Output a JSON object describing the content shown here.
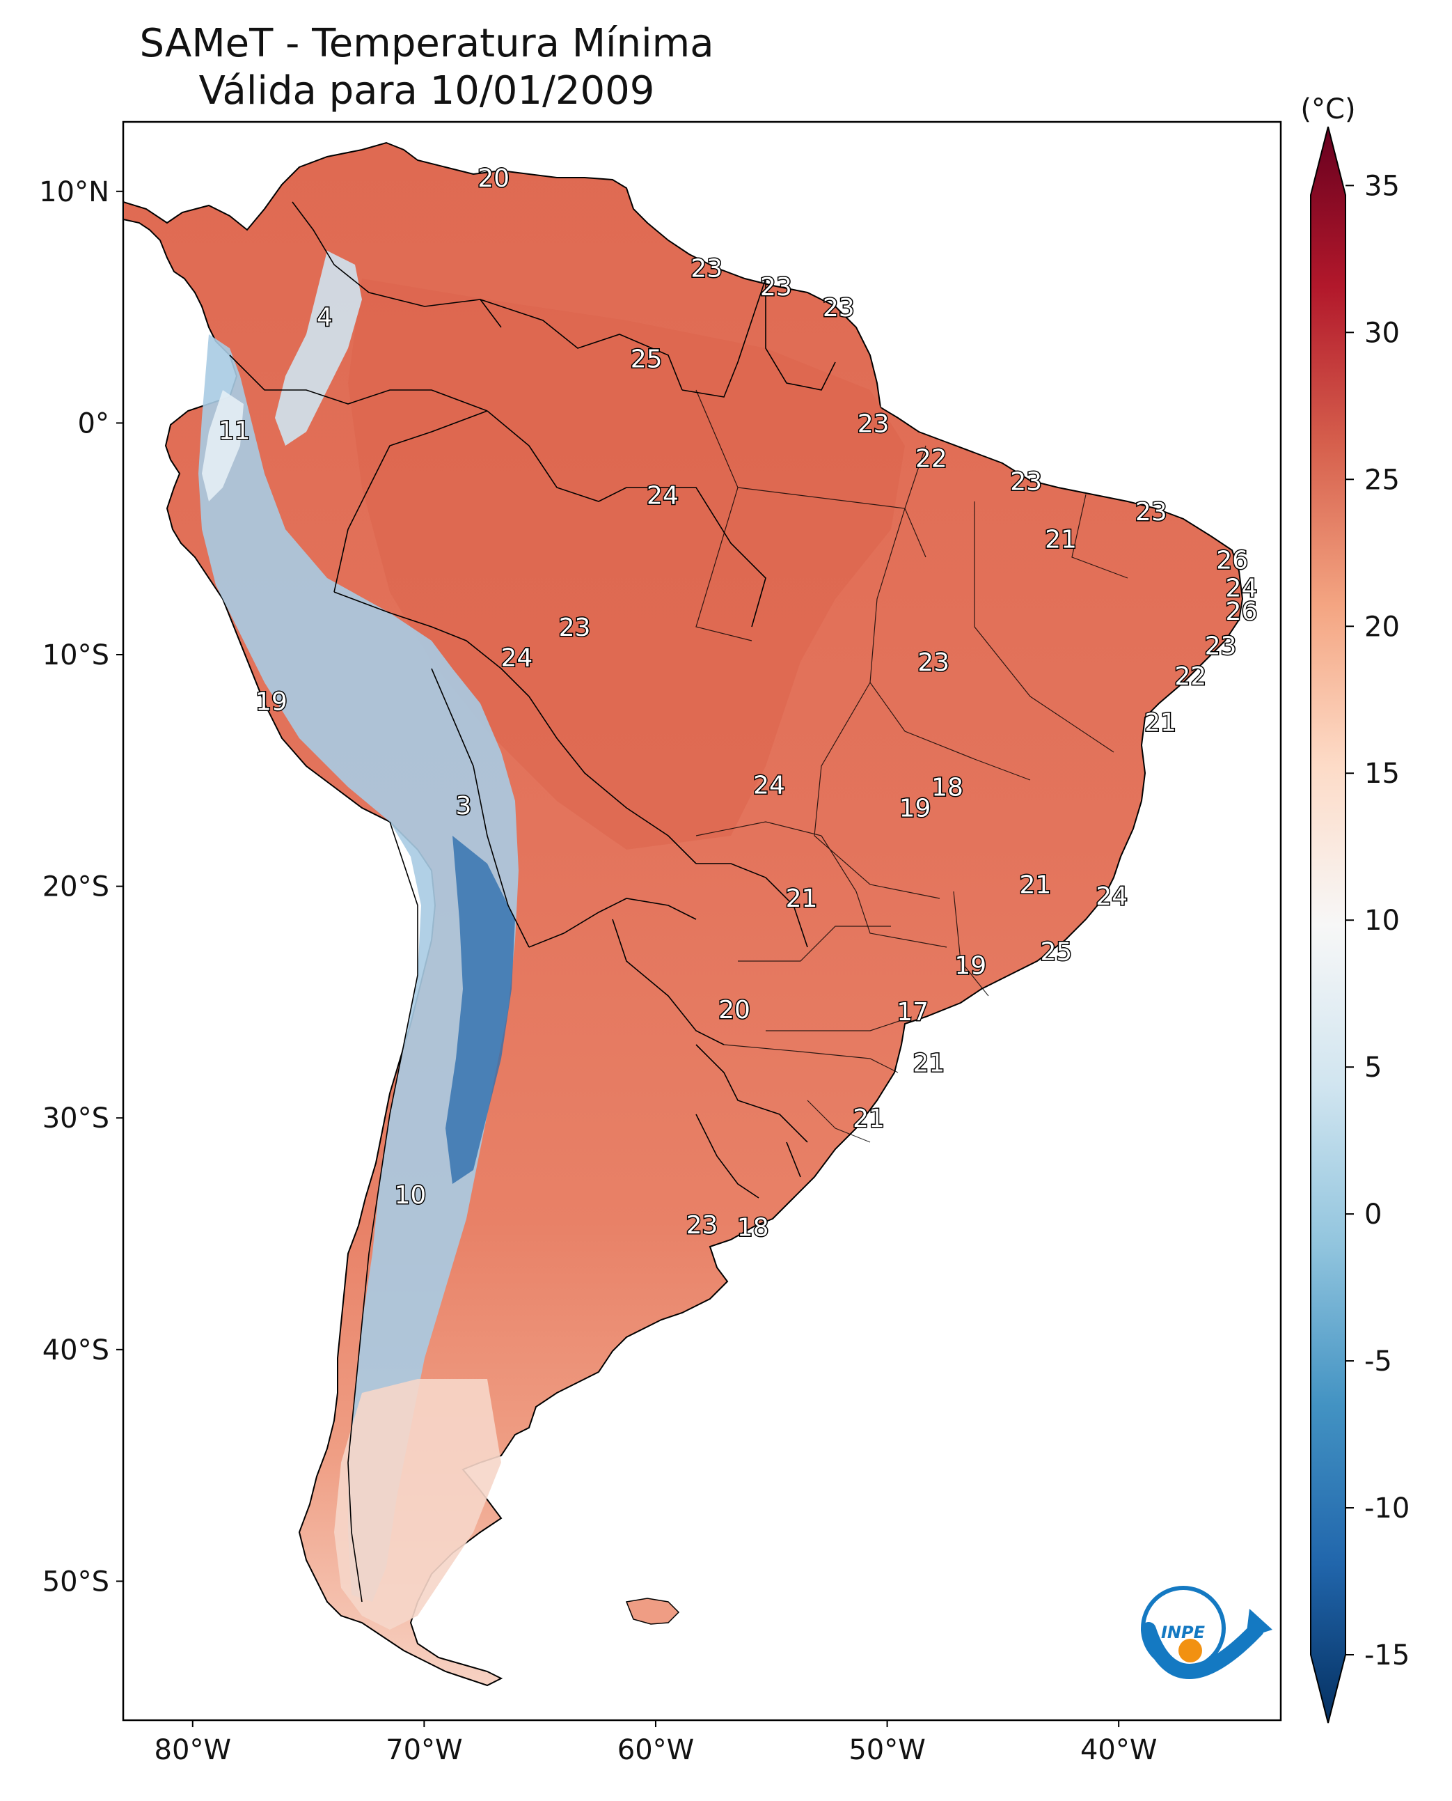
{
  "title": {
    "line1": "SAMeT - Temperatura Mínima",
    "line2": "Válida para 10/01/2009"
  },
  "axes": {
    "lat_labels": [
      "10°N",
      "0°",
      "10°S",
      "20°S",
      "30°S",
      "40°S",
      "50°S"
    ],
    "lat_values": [
      10,
      0,
      -10,
      -20,
      -30,
      -40,
      -50
    ],
    "lon_labels": [
      "80°W",
      "70°W",
      "60°W",
      "50°W",
      "40°W"
    ],
    "lon_values": [
      -80,
      -70,
      -60,
      -50,
      -40
    ],
    "lon_range": [
      -83,
      -33
    ],
    "lat_range": [
      -56,
      13
    ]
  },
  "colorbar": {
    "unit": "(°C)",
    "ticks": [
      "35",
      "30",
      "25",
      "20",
      "15",
      "10",
      "5",
      "0",
      "-5",
      "-10",
      "-15"
    ],
    "tick_values": [
      35,
      30,
      25,
      20,
      15,
      10,
      5,
      0,
      -5,
      -10,
      -15
    ],
    "range": [
      -15,
      37
    ],
    "colors": [
      "#053061",
      "#2166ac",
      "#4393c3",
      "#92c5de",
      "#d1e5f0",
      "#f7f7f7",
      "#fddbc7",
      "#f4a582",
      "#d6604d",
      "#b2182b",
      "#67001f"
    ]
  },
  "annotations": [
    {
      "text": "20",
      "lon": -67.0,
      "lat": 10.6
    },
    {
      "text": "23",
      "lon": -57.8,
      "lat": 6.7
    },
    {
      "text": "23",
      "lon": -54.8,
      "lat": 5.9
    },
    {
      "text": "23",
      "lon": -52.1,
      "lat": 5.0
    },
    {
      "text": "4",
      "lon": -74.3,
      "lat": 4.6
    },
    {
      "text": "25",
      "lon": -60.4,
      "lat": 2.8
    },
    {
      "text": "11",
      "lon": -78.2,
      "lat": -0.3
    },
    {
      "text": "23",
      "lon": -50.6,
      "lat": 0.0
    },
    {
      "text": "22",
      "lon": -48.1,
      "lat": -1.5
    },
    {
      "text": "23",
      "lon": -44.0,
      "lat": -2.5
    },
    {
      "text": "23",
      "lon": -38.6,
      "lat": -3.8
    },
    {
      "text": "24",
      "lon": -59.7,
      "lat": -3.1
    },
    {
      "text": "21",
      "lon": -42.5,
      "lat": -5.0
    },
    {
      "text": "26",
      "lon": -35.1,
      "lat": -5.9
    },
    {
      "text": "24",
      "lon": -34.7,
      "lat": -7.1
    },
    {
      "text": "26",
      "lon": -34.7,
      "lat": -8.1
    },
    {
      "text": "23",
      "lon": -63.5,
      "lat": -8.8
    },
    {
      "text": "23",
      "lon": -35.6,
      "lat": -9.6
    },
    {
      "text": "24",
      "lon": -66.0,
      "lat": -10.1
    },
    {
      "text": "23",
      "lon": -48.0,
      "lat": -10.3
    },
    {
      "text": "22",
      "lon": -36.9,
      "lat": -10.9
    },
    {
      "text": "19",
      "lon": -76.6,
      "lat": -12.0
    },
    {
      "text": "21",
      "lon": -38.2,
      "lat": -12.9
    },
    {
      "text": "24",
      "lon": -55.1,
      "lat": -15.6
    },
    {
      "text": "18",
      "lon": -47.4,
      "lat": -15.7
    },
    {
      "text": "19",
      "lon": -48.8,
      "lat": -16.6
    },
    {
      "text": "3",
      "lon": -68.3,
      "lat": -16.5
    },
    {
      "text": "21",
      "lon": -43.6,
      "lat": -19.9
    },
    {
      "text": "24",
      "lon": -40.3,
      "lat": -20.4
    },
    {
      "text": "21",
      "lon": -53.7,
      "lat": -20.5
    },
    {
      "text": "25",
      "lon": -42.7,
      "lat": -22.8
    },
    {
      "text": "19",
      "lon": -46.4,
      "lat": -23.4
    },
    {
      "text": "20",
      "lon": -56.6,
      "lat": -25.3
    },
    {
      "text": "17",
      "lon": -48.9,
      "lat": -25.4
    },
    {
      "text": "21",
      "lon": -48.2,
      "lat": -27.6
    },
    {
      "text": "21",
      "lon": -50.8,
      "lat": -30.0
    },
    {
      "text": "10",
      "lon": -70.6,
      "lat": -33.3
    },
    {
      "text": "23",
      "lon": -58.0,
      "lat": -34.6
    },
    {
      "text": "18",
      "lon": -55.8,
      "lat": -34.7
    }
  ],
  "logo": {
    "text": "INPE",
    "primary": "#1479c2",
    "accent": "#f29111"
  },
  "colors": {
    "land_warm": "#e3715a",
    "land_mid": "#f0a487",
    "land_cool": "#c9dfee",
    "andes_cold": "#3d7fba",
    "ocean": "#ffffff"
  }
}
